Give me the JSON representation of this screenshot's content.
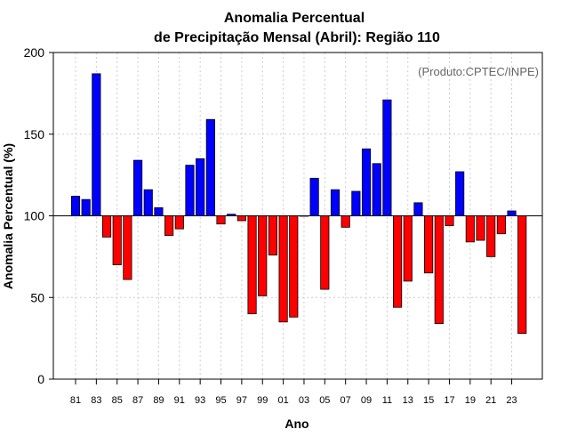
{
  "chart_data": {
    "type": "bar",
    "title_line1": "Anomalia Percentual",
    "title_line2": "de Precipitação Mensal (Abril): Região 110",
    "xlabel": "Ano",
    "ylabel": "Anomalia Percentual (%)",
    "credit": "(Produto:CPTEC/INPE)",
    "baseline": 100,
    "ylim": [
      0,
      200
    ],
    "yticks": [
      0,
      50,
      100,
      150,
      200
    ],
    "xtick_labels": [
      "81",
      "83",
      "85",
      "87",
      "89",
      "91",
      "93",
      "95",
      "97",
      "99",
      "01",
      "03",
      "05",
      "07",
      "09",
      "11",
      "13",
      "15",
      "17",
      "19",
      "21",
      "23"
    ],
    "categories": [
      "1981",
      "1982",
      "1983",
      "1984",
      "1985",
      "1986",
      "1987",
      "1988",
      "1989",
      "1990",
      "1991",
      "1992",
      "1993",
      "1994",
      "1995",
      "1996",
      "1997",
      "1998",
      "1999",
      "2000",
      "2001",
      "2002",
      "2003",
      "2004",
      "2005",
      "2006",
      "2007",
      "2008",
      "2009",
      "2010",
      "2011",
      "2012",
      "2013",
      "2014",
      "2015",
      "2016",
      "2017",
      "2018",
      "2019",
      "2020",
      "2021",
      "2022",
      "2023",
      "2024"
    ],
    "values": [
      112,
      110,
      187,
      87,
      70,
      61,
      134,
      116,
      105,
      88,
      92,
      131,
      135,
      159,
      95,
      101,
      97,
      40,
      51,
      76,
      35,
      38,
      100,
      123,
      55,
      116,
      93,
      115,
      141,
      132,
      171,
      44,
      60,
      108,
      65,
      34,
      94,
      127,
      84,
      85,
      75,
      89,
      103,
      28
    ],
    "colors": {
      "above": "#0000ff",
      "below": "#ff0000",
      "grid": "#cccccc"
    }
  }
}
